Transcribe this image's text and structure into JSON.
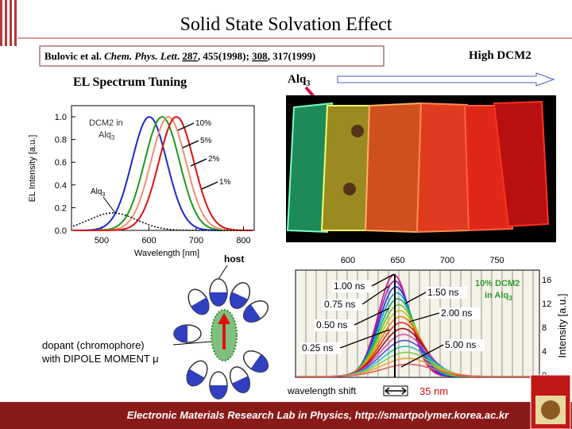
{
  "header": {
    "title": "Solid State Solvation Effect",
    "citation": {
      "authors": "Bulovic et al.",
      "journal": "Chem. Phys. Lett",
      "dot": ".",
      "vol1": "287",
      "ref1": ", 455(1998); ",
      "vol2": "308",
      "ref2": ", 317(1999)"
    }
  },
  "el_plot": {
    "heading": "EL Spectrum Tuning",
    "yticks": [
      "0.0",
      "0.2",
      "0.4",
      "0.6",
      "0.8",
      "1.0"
    ],
    "xticks": [
      "500",
      "600",
      "700",
      "800"
    ],
    "xlabel": "Wavelength [nm]",
    "ylabel": "EL Intensity [a.u.]",
    "legend": {
      "line1": "DCM2 in",
      "line2": "Alq",
      "sub": "3"
    },
    "curve_labels": [
      "10%",
      "5%",
      "2%",
      "1%"
    ],
    "alq_label": {
      "main": "Alq",
      "sub": "3"
    }
  },
  "photo": {
    "start_label": {
      "main": "Alq",
      "sub": "3"
    },
    "end_label": "High DCM2"
  },
  "diagram": {
    "host": "host",
    "dopant": "dopant (chromophore)",
    "dipole": "with DIPOLE MOMENT μ"
  },
  "tr_plot": {
    "top_ticks": [
      "600",
      "650",
      "700",
      "750"
    ],
    "right_ticks": [
      "16",
      "12",
      "8",
      "4",
      "0"
    ],
    "ylabel": "Intensity [a.u.]",
    "time_labels": [
      "1.00 ns",
      "0.75 ns",
      "0.50 ns",
      "0.25 ns",
      "1.50 ns",
      "2.00 ns",
      "5.00 ns"
    ],
    "sample": {
      "line1": "10% DCM2",
      "line2": "in Alq",
      "sub": "3"
    },
    "shift_label": "wavelength shift",
    "shift_value": "35 nm"
  },
  "footer": {
    "text": "Electronic Materials Research Lab in Physics, http://smartpolymer.korea.ac.kr"
  }
}
